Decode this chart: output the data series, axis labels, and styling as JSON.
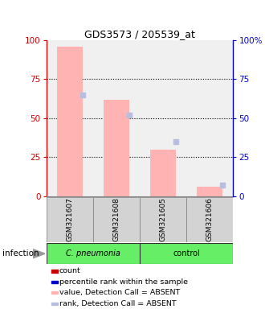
{
  "title": "GDS3573 / 205539_at",
  "samples": [
    "GSM321607",
    "GSM321608",
    "GSM321605",
    "GSM321606"
  ],
  "bar_values": [
    96,
    62,
    30,
    6
  ],
  "rank_values": [
    65,
    52,
    35,
    7
  ],
  "bar_color_absent": "#ffb3b3",
  "rank_color_absent": "#b8bedd",
  "ylim": [
    0,
    100
  ],
  "yticks": [
    0,
    25,
    50,
    75,
    100
  ],
  "left_axis_color": "#cc0000",
  "right_axis_color": "#0000cc",
  "plot_bg": "#f0f0f0",
  "sample_box_bg": "#d3d3d3",
  "group1_color": "#66ee66",
  "group2_color": "#66ee66",
  "background_color": "#ffffff",
  "legend_items": [
    {
      "color": "#cc0000",
      "label": "count"
    },
    {
      "color": "#0000cc",
      "label": "percentile rank within the sample"
    },
    {
      "color": "#ffb3b3",
      "label": "value, Detection Call = ABSENT"
    },
    {
      "color": "#b8bedd",
      "label": "rank, Detection Call = ABSENT"
    }
  ]
}
